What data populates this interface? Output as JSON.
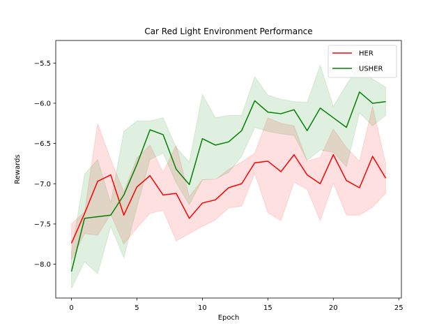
{
  "chart_data": {
    "type": "line",
    "title": "Car Red Light Environment Performance",
    "xlabel": "Epoch",
    "ylabel": "Rewards",
    "xlim": [
      -1.2,
      25.2
    ],
    "ylim": [
      -8.42,
      -5.22
    ],
    "xticks": [
      0,
      5,
      10,
      15,
      20,
      25
    ],
    "xtick_labels": [
      "0",
      "5",
      "10",
      "15",
      "20",
      "25"
    ],
    "yticks": [
      -8.0,
      -7.5,
      -7.0,
      -6.5,
      -6.0,
      -5.5
    ],
    "ytick_labels": [
      "−8.0",
      "−7.5",
      "−7.0",
      "−6.5",
      "−6.0",
      "−5.5"
    ],
    "grid": false,
    "legend_position": "top-right",
    "x": [
      0,
      1,
      2,
      3,
      4,
      5,
      6,
      7,
      8,
      9,
      10,
      11,
      12,
      13,
      14,
      15,
      16,
      17,
      18,
      19,
      20,
      21,
      22,
      23,
      24
    ],
    "series": [
      {
        "name": "HER",
        "color": "#ff0000",
        "band_color": "#ff0000",
        "values": [
          -7.74,
          -7.37,
          -6.97,
          -6.89,
          -7.39,
          -7.04,
          -6.9,
          -7.14,
          -7.12,
          -7.43,
          -7.24,
          -7.2,
          -7.05,
          -7.0,
          -6.74,
          -6.72,
          -6.85,
          -6.64,
          -6.89,
          -7.0,
          -6.64,
          -6.96,
          -7.05,
          -6.66,
          -6.93
        ],
        "lower": [
          -7.95,
          -7.62,
          -7.64,
          -7.38,
          -7.75,
          -7.55,
          -7.37,
          -7.33,
          -7.71,
          -7.62,
          -7.53,
          -7.45,
          -7.3,
          -7.28,
          -6.87,
          -7.36,
          -7.46,
          -6.98,
          -7.07,
          -7.46,
          -6.99,
          -7.39,
          -7.39,
          -7.29,
          -7.12
        ],
        "upper": [
          -7.5,
          -7.35,
          -6.25,
          -6.7,
          -7.1,
          -6.68,
          -6.52,
          -6.86,
          -6.52,
          -7.16,
          -6.95,
          -6.95,
          -6.82,
          -6.73,
          -6.62,
          -6.18,
          -6.25,
          -6.28,
          -6.72,
          -6.67,
          -6.32,
          -6.55,
          -6.72,
          -6.04,
          -6.75
        ]
      },
      {
        "name": "USHER",
        "color": "#008000",
        "band_color": "#008000",
        "values": [
          -8.09,
          -7.43,
          -7.41,
          -7.39,
          -7.14,
          -6.76,
          -6.33,
          -6.39,
          -6.82,
          -7.01,
          -6.44,
          -6.52,
          -6.48,
          -6.34,
          -5.97,
          -6.11,
          -6.13,
          -6.08,
          -6.34,
          -6.06,
          -6.18,
          -6.3,
          -5.86,
          -6.0,
          -5.98
        ],
        "lower": [
          -8.3,
          -7.97,
          -8.12,
          -7.53,
          -7.92,
          -7.29,
          -6.7,
          -6.62,
          -6.99,
          -7.26,
          -6.95,
          -6.94,
          -6.86,
          -6.66,
          -6.3,
          -6.35,
          -6.38,
          -6.4,
          -6.71,
          -6.58,
          -6.61,
          -6.79,
          -6.12,
          -6.28,
          -6.15
        ],
        "upper": [
          -7.86,
          -6.88,
          -6.7,
          -7.24,
          -6.35,
          -6.22,
          -6.22,
          -6.18,
          -6.55,
          -6.73,
          -5.89,
          -6.18,
          -6.15,
          -6.15,
          -5.67,
          -5.9,
          -5.95,
          -5.98,
          -5.99,
          -5.53,
          -6.04,
          -5.77,
          -5.53,
          -5.7,
          -5.8
        ]
      }
    ]
  }
}
